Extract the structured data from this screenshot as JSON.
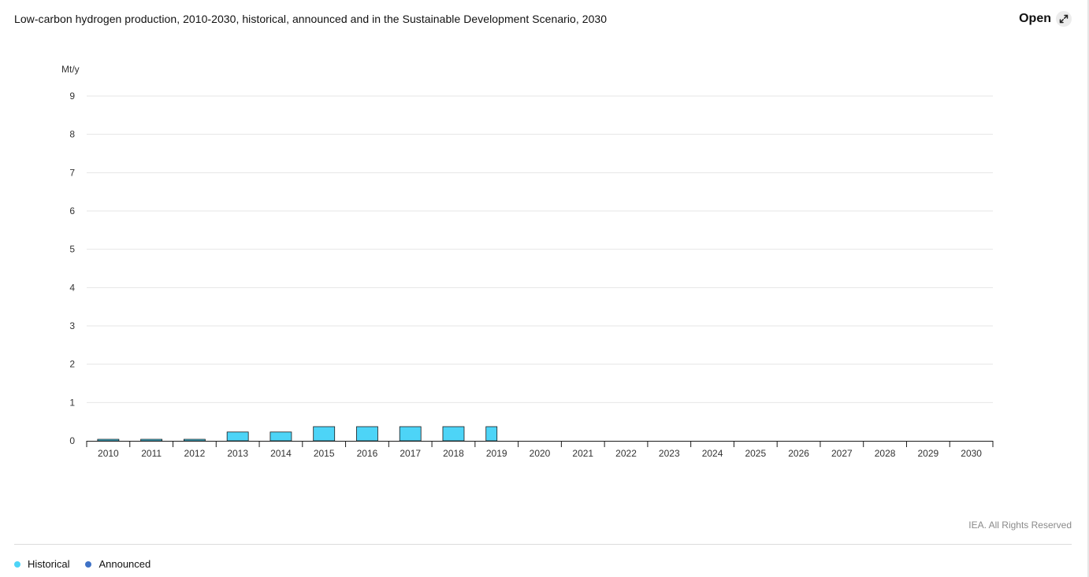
{
  "header": {
    "title": "Low-carbon hydrogen production, 2010-2030, historical, announced and in the Sustainable Development Scenario, 2030",
    "open_label": "Open",
    "open_icon": "expand-arrows-icon"
  },
  "footer": {
    "credits": "IEA. All Rights Reserved"
  },
  "legend": [
    {
      "label": "Historical",
      "color": "#4dd4f7"
    },
    {
      "label": "Announced",
      "color": "#3f72c6"
    }
  ],
  "chart_data": {
    "type": "bar",
    "unit_label": "Mt/y",
    "categories": [
      "2010",
      "2011",
      "2012",
      "2013",
      "2014",
      "2015",
      "2016",
      "2017",
      "2018",
      "2019",
      "2020",
      "2021",
      "2022",
      "2023",
      "2024",
      "2025",
      "2026",
      "2027",
      "2028",
      "2029",
      "2030"
    ],
    "series": [
      {
        "name": "Historical",
        "color": "#4dd4f7",
        "values": [
          0.04,
          0.04,
          0.04,
          0.23,
          0.23,
          0.37,
          0.37,
          0.37,
          0.37,
          0.37,
          null,
          null,
          null,
          null,
          null,
          null,
          null,
          null,
          null,
          null,
          null
        ]
      },
      {
        "name": "Announced",
        "color": "#3f72c6",
        "values": [
          null,
          null,
          null,
          null,
          null,
          null,
          null,
          null,
          null,
          null,
          0,
          0,
          0,
          0,
          0,
          0,
          0,
          0,
          0,
          0,
          0
        ]
      }
    ],
    "yticks": [
      0,
      1,
      2,
      3,
      4,
      5,
      6,
      7,
      8,
      9
    ],
    "ylim": [
      0,
      9
    ],
    "grid": true,
    "legend_position": "bottom-left"
  }
}
